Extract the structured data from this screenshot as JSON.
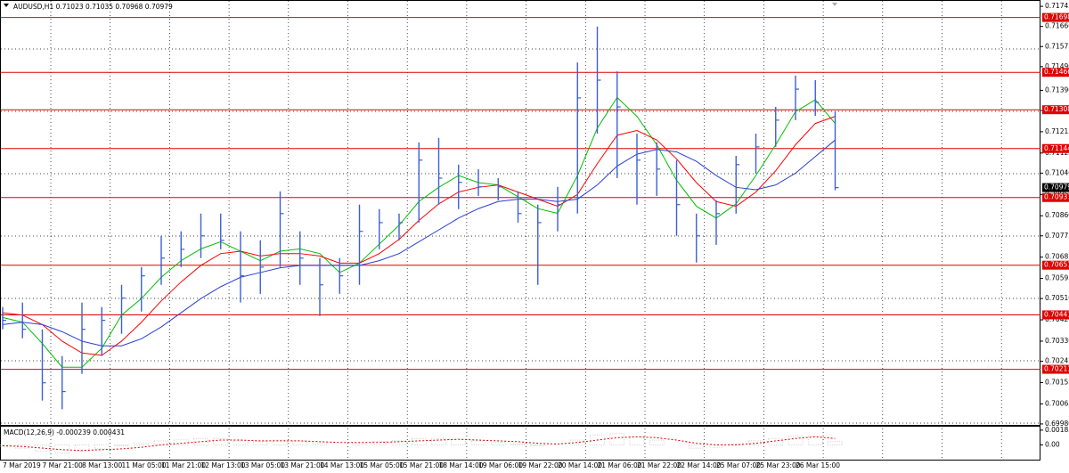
{
  "chart_data": {
    "type": "ohlc",
    "title": "AUDUSD,H1 0.71023 0.71035 0.70968 0.70979",
    "categories": [
      "7 Mar 2019",
      null,
      "7 Mar 21:00",
      null,
      "8 Mar 13:00",
      null,
      "11 Mar 05:00",
      null,
      "11 Mar 21:00",
      null,
      "12 Mar 13:00",
      null,
      "13 Mar 05:00",
      null,
      "13 Mar 21:00",
      null,
      "14 Mar 13:00",
      null,
      "15 Mar 05:00",
      null,
      "15 Mar 21:00",
      null,
      "18 Mar 14:00",
      null,
      "19 Mar 06:00",
      null,
      "19 Mar 22:00",
      null,
      "20 Mar 14:00",
      null,
      "21 Mar 06:00",
      null,
      "21 Mar 22:00",
      null,
      "22 Mar 14:00",
      null,
      "25 Mar 07:00",
      null,
      "25 Mar 23:00",
      null,
      "26 Mar 15:00",
      null,
      null
    ],
    "high": [
      0.70474,
      0.70493,
      0.7038,
      0.70267,
      0.70493,
      0.70474,
      0.70568,
      0.70643,
      0.70775,
      0.70794,
      0.70869,
      0.70869,
      0.70794,
      0.70756,
      0.70963,
      0.70794,
      0.70681,
      0.70681,
      0.70907,
      0.70888,
      0.70869,
      0.7117,
      0.71189,
      0.71076,
      0.71057,
      0.71019,
      0.70963,
      0.70907,
      0.70982,
      0.71508,
      0.71659,
      0.7147,
      0.71207,
      0.7117,
      0.71095,
      0.70869,
      0.70925,
      0.71113,
      0.71207,
      0.7132,
      0.71452,
      0.71433,
      0.71301
    ],
    "low": [
      0.7038,
      0.70342,
      0.70079,
      0.70042,
      0.70192,
      0.70267,
      0.70361,
      0.70455,
      0.70568,
      0.70643,
      0.70681,
      0.70718,
      0.70493,
      0.7053,
      0.70643,
      0.70568,
      0.70436,
      0.7053,
      0.70568,
      0.70718,
      0.70756,
      0.70831,
      0.70907,
      0.70888,
      0.70944,
      0.70925,
      0.70831,
      0.70568,
      0.70794,
      0.70869,
      0.71207,
      0.71019,
      0.70907,
      0.70944,
      0.70775,
      0.70662,
      0.70737,
      0.70869,
      0.71038,
      0.71151,
      0.71264,
      0.71282,
      0.70968
    ],
    "close": [
      0.70418,
      0.7038,
      0.70154,
      0.70117,
      0.7038,
      0.70418,
      0.70512,
      0.70606,
      0.70681,
      0.70718,
      0.70775,
      0.70756,
      0.70606,
      0.70643,
      0.70869,
      0.70681,
      0.70568,
      0.70606,
      0.70794,
      0.70831,
      0.70831,
      0.71095,
      0.71019,
      0.71001,
      0.70982,
      0.70982,
      0.70869,
      0.70831,
      0.70907,
      0.71358,
      0.71433,
      0.7132,
      0.71095,
      0.71057,
      0.70907,
      0.70775,
      0.70869,
      0.71076,
      0.71151,
      0.71264,
      0.71395,
      0.71339,
      0.70979
    ],
    "color": "#3d5fd6",
    "series": [
      {
        "color": "#00c000",
        "values": [
          0.7043,
          0.7041,
          0.7032,
          0.7022,
          0.7022,
          0.703,
          0.7044,
          0.7051,
          0.706,
          0.7067,
          0.7072,
          0.7075,
          0.7071,
          0.7067,
          0.7071,
          0.7072,
          0.707,
          0.7062,
          0.7066,
          0.7074,
          0.7082,
          0.7092,
          0.7098,
          0.7103,
          0.71,
          0.7099,
          0.7094,
          0.7089,
          0.7087,
          0.7103,
          0.7123,
          0.7136,
          0.7128,
          0.7116,
          0.7101,
          0.709,
          0.7085,
          0.7091,
          0.7103,
          0.7116,
          0.713,
          0.7135,
          0.7125
        ]
      },
      {
        "color": "#ff0000",
        "values": [
          0.7045,
          0.7044,
          0.704,
          0.7033,
          0.7028,
          0.7027,
          0.7033,
          0.7041,
          0.705,
          0.7058,
          0.7065,
          0.707,
          0.7071,
          0.7069,
          0.707,
          0.707,
          0.7069,
          0.7066,
          0.7066,
          0.707,
          0.7076,
          0.7084,
          0.7091,
          0.7096,
          0.7098,
          0.7099,
          0.7096,
          0.7093,
          0.709,
          0.7095,
          0.7108,
          0.712,
          0.7122,
          0.7118,
          0.711,
          0.71,
          0.7092,
          0.709,
          0.7096,
          0.7105,
          0.7116,
          0.7125,
          0.7128
        ]
      },
      {
        "color": "#2a3fd0",
        "values": [
          0.704,
          0.7041,
          0.704,
          0.7037,
          0.7033,
          0.7031,
          0.7031,
          0.7034,
          0.7039,
          0.7045,
          0.7051,
          0.7056,
          0.706,
          0.7062,
          0.7064,
          0.7065,
          0.7065,
          0.7065,
          0.7065,
          0.7067,
          0.707,
          0.7075,
          0.708,
          0.7085,
          0.7089,
          0.7092,
          0.7093,
          0.7093,
          0.7092,
          0.7093,
          0.7099,
          0.7107,
          0.7112,
          0.7114,
          0.7113,
          0.7109,
          0.7103,
          0.7098,
          0.7097,
          0.7099,
          0.7104,
          0.7111,
          0.7118
        ]
      }
    ],
    "ylim": [
      0.69976,
      0.71768
    ],
    "yticks": [
      0.71745,
      {
        "value": 0.7166,
        "label": "0.71660"
      },
      0.71575,
      {
        "value": 0.7149,
        "label": "0.71490"
      },
      {
        "value": 0.7139,
        "label": "0.71390"
      },
      0.71305,
      0.71215,
      0.71125,
      {
        "value": 0.7104,
        "label": "0.71040"
      },
      {
        "value": 0.7095,
        "label": "0.70950"
      },
      {
        "value": 0.7086,
        "label": "0.70860"
      },
      0.70775,
      0.70685,
      0.70595,
      {
        "value": 0.7051,
        "label": "0.70510"
      },
      {
        "value": 0.7042,
        "label": "0.70420"
      },
      {
        "value": 0.7033,
        "label": "0.70330"
      },
      0.70245,
      0.70155,
      0.70065,
      {
        "value": 0.6998,
        "label": "0.69980"
      }
    ],
    "levels": [
      0.71698,
      0.71466,
      0.71308,
      0.71144,
      0.70937,
      0.70651,
      0.70441,
      0.70211
    ],
    "level_color": "#e00000",
    "current_price": 0.70979,
    "grid": true,
    "macd": {
      "title": "MACD(12,26,9) -0.000239 0.000431",
      "histogram": [
        -0.0002,
        -0.0004,
        -0.0008,
        -0.001,
        -0.0008,
        -0.0005,
        -0.0001,
        0.0002,
        0.0005,
        0.0007,
        0.0008,
        0.0008,
        0.0005,
        0.0004,
        0.0006,
        0.0005,
        0.0002,
        0.0,
        0.0002,
        0.0004,
        0.0005,
        0.0008,
        0.0008,
        0.0007,
        0.0005,
        0.0003,
        0.0001,
        -0.0001,
        0.0,
        0.0006,
        0.0012,
        0.0014,
        0.001,
        0.0006,
        0.0,
        -0.0004,
        -0.0003,
        0.0001,
        0.0005,
        0.0008,
        0.0011,
        0.0011,
        0.0004
      ],
      "signal": [
        -0.0001,
        -0.0002,
        -0.0004,
        -0.0006,
        -0.0007,
        -0.0006,
        -0.0005,
        -0.0003,
        0.0,
        0.0002,
        0.0004,
        0.0006,
        0.0006,
        0.0005,
        0.0005,
        0.0005,
        0.0004,
        0.0003,
        0.0003,
        0.0003,
        0.0004,
        0.0005,
        0.0006,
        0.0007,
        0.0006,
        0.0005,
        0.0004,
        0.0002,
        0.0001,
        0.0003,
        0.0006,
        0.0009,
        0.001,
        0.0009,
        0.0006,
        0.0002,
        0.0,
        0.0,
        0.0002,
        0.0005,
        0.0008,
        0.001,
        0.0008
      ],
      "histogram_color": "#b0b0b0",
      "signal_color": "#e00000",
      "ylim": [
        -0.00184,
        0.00227
      ],
      "yticks": [
        0.001838,
        {
          "value": 0,
          "label": "0.00"
        }
      ]
    }
  }
}
